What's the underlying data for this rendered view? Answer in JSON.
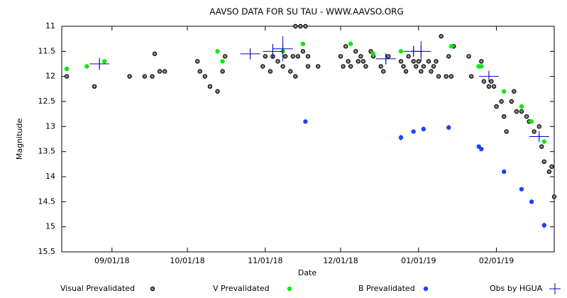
{
  "chart_data": {
    "type": "scatter",
    "title": "AAVSO DATA FOR SU TAU - WWW.AAVSO.ORG",
    "x_label": "Date",
    "y_label": "Magnitude",
    "xlim": [
      "2018-08-12",
      "2019-02-24"
    ],
    "xticks": [
      {
        "value": "2018-09-01",
        "label": "09/01/18"
      },
      {
        "value": "2018-10-01",
        "label": "10/01/18"
      },
      {
        "value": "2018-11-01",
        "label": "11/01/18"
      },
      {
        "value": "2018-12-01",
        "label": "12/01/18"
      },
      {
        "value": "2019-01-01",
        "label": "01/01/19"
      },
      {
        "value": "2019-02-01",
        "label": "02/01/19"
      }
    ],
    "ylim": [
      15.5,
      11
    ],
    "y_inverted": true,
    "yticks": [
      11,
      11.5,
      12,
      12.5,
      13,
      13.5,
      14,
      14.5,
      15,
      15.5
    ],
    "grid": false,
    "legend": "bottom",
    "series": [
      {
        "name": "Visual Prevalidated",
        "color": "#000000",
        "marker": "circle",
        "x": [
          "2018-08-14",
          "2018-08-25",
          "2018-09-08",
          "2018-09-14",
          "2018-09-18",
          "2018-09-17",
          "2018-09-20",
          "2018-09-22",
          "2018-10-05",
          "2018-10-06",
          "2018-10-08",
          "2018-10-10",
          "2018-10-13",
          "2018-10-15",
          "2018-10-16",
          "2018-10-31",
          "2018-11-01",
          "2018-11-03",
          "2018-11-04",
          "2018-11-06",
          "2018-11-08",
          "2018-11-09",
          "2018-11-11",
          "2018-11-12",
          "2018-11-13",
          "2018-11-13",
          "2018-11-14",
          "2018-11-15",
          "2018-11-16",
          "2018-11-17",
          "2018-11-18",
          "2018-11-18",
          "2018-11-22",
          "2018-12-01",
          "2018-12-02",
          "2018-12-03",
          "2018-12-04",
          "2018-12-05",
          "2018-12-07",
          "2018-12-08",
          "2018-12-09",
          "2018-12-10",
          "2018-12-11",
          "2018-12-13",
          "2018-12-14",
          "2018-12-17",
          "2018-12-18",
          "2018-12-20",
          "2018-12-25",
          "2018-12-26",
          "2018-12-27",
          "2018-12-28",
          "2018-12-30",
          "2018-12-31",
          "2019-01-01",
          "2019-01-02",
          "2019-01-03",
          "2019-01-05",
          "2019-01-06",
          "2019-01-07",
          "2019-01-08",
          "2019-01-09",
          "2019-01-10",
          "2019-01-12",
          "2019-01-13",
          "2019-01-14",
          "2019-01-15",
          "2019-01-21",
          "2019-01-22",
          "2019-01-25",
          "2019-01-26",
          "2019-01-27",
          "2019-01-29",
          "2019-01-30",
          "2019-01-31",
          "2019-02-01",
          "2019-02-03",
          "2019-02-04",
          "2019-02-05",
          "2019-02-07",
          "2019-02-08",
          "2019-02-09",
          "2019-02-11",
          "2019-02-13",
          "2019-02-14",
          "2019-02-16",
          "2019-02-18",
          "2019-02-19",
          "2019-02-20",
          "2019-02-22",
          "2019-02-23",
          "2019-02-24"
        ],
        "values": [
          12.0,
          12.2,
          12.0,
          12.0,
          11.55,
          12.0,
          11.9,
          11.9,
          11.7,
          11.9,
          12.0,
          12.2,
          12.3,
          11.9,
          11.6,
          11.8,
          11.6,
          11.9,
          11.6,
          11.7,
          11.8,
          11.6,
          11.9,
          11.6,
          11.0,
          12.0,
          11.6,
          11.0,
          11.5,
          11.0,
          11.6,
          11.8,
          11.8,
          11.6,
          11.8,
          11.4,
          11.7,
          11.8,
          11.5,
          11.7,
          11.6,
          11.7,
          11.8,
          11.5,
          11.6,
          11.8,
          11.9,
          11.6,
          11.7,
          11.8,
          11.9,
          11.6,
          11.7,
          11.8,
          11.7,
          11.9,
          11.8,
          11.7,
          11.9,
          11.8,
          11.7,
          12.0,
          11.2,
          12.0,
          11.6,
          12.0,
          11.4,
          11.6,
          12.0,
          11.8,
          11.7,
          12.1,
          12.2,
          12.1,
          12.2,
          12.6,
          12.5,
          12.8,
          13.1,
          12.5,
          12.3,
          12.7,
          12.7,
          12.8,
          12.9,
          13.1,
          13.0,
          13.4,
          13.7,
          13.9,
          13.8,
          14.4
        ]
      },
      {
        "name": "V Prevalidated",
        "color": "#00ee00",
        "marker": "circle",
        "x": [
          "2018-08-14",
          "2018-08-22",
          "2018-08-29",
          "2018-10-13",
          "2018-10-15",
          "2018-11-08",
          "2018-11-16",
          "2018-12-05",
          "2018-12-14",
          "2018-12-25",
          "2019-01-14",
          "2019-01-25",
          "2019-01-26",
          "2019-02-04",
          "2019-02-11",
          "2019-02-15",
          "2019-02-20"
        ],
        "values": [
          11.85,
          11.8,
          11.7,
          11.5,
          11.7,
          11.5,
          11.35,
          11.35,
          11.55,
          11.5,
          11.4,
          11.8,
          11.8,
          12.3,
          12.6,
          12.9,
          13.3
        ]
      },
      {
        "name": "B Prevalidated",
        "color": "#1f3fff",
        "marker": "circle",
        "x": [
          "2018-11-17",
          "2018-12-25",
          "2018-12-30",
          "2019-01-03",
          "2019-01-13",
          "2019-01-25",
          "2019-01-26",
          "2019-02-04",
          "2019-02-11",
          "2019-02-15",
          "2019-02-20"
        ],
        "values": [
          12.9,
          13.22,
          13.1,
          13.05,
          13.02,
          13.4,
          13.45,
          13.9,
          14.25,
          14.5,
          14.97
        ],
        "errors": [
          0.04,
          0.06,
          0.04,
          0.05,
          0.05,
          0.04,
          0.04,
          0.04,
          0.04,
          0.04,
          0.06
        ]
      },
      {
        "name": "Obs by HGUA",
        "color": "#0000cc",
        "marker": "cross",
        "x": [
          "2018-08-27",
          "2018-10-26",
          "2018-11-04",
          "2018-11-08",
          "2018-12-19",
          "2018-12-30",
          "2019-01-02",
          "2019-01-29",
          "2019-02-18"
        ],
        "values": [
          11.75,
          11.55,
          11.5,
          11.45,
          11.65,
          11.5,
          11.5,
          12.0,
          13.2
        ],
        "errors": [
          0.12,
          0.1,
          0.15,
          0.25,
          0.1,
          0.1,
          0.2,
          0.08,
          0.06
        ]
      }
    ]
  }
}
